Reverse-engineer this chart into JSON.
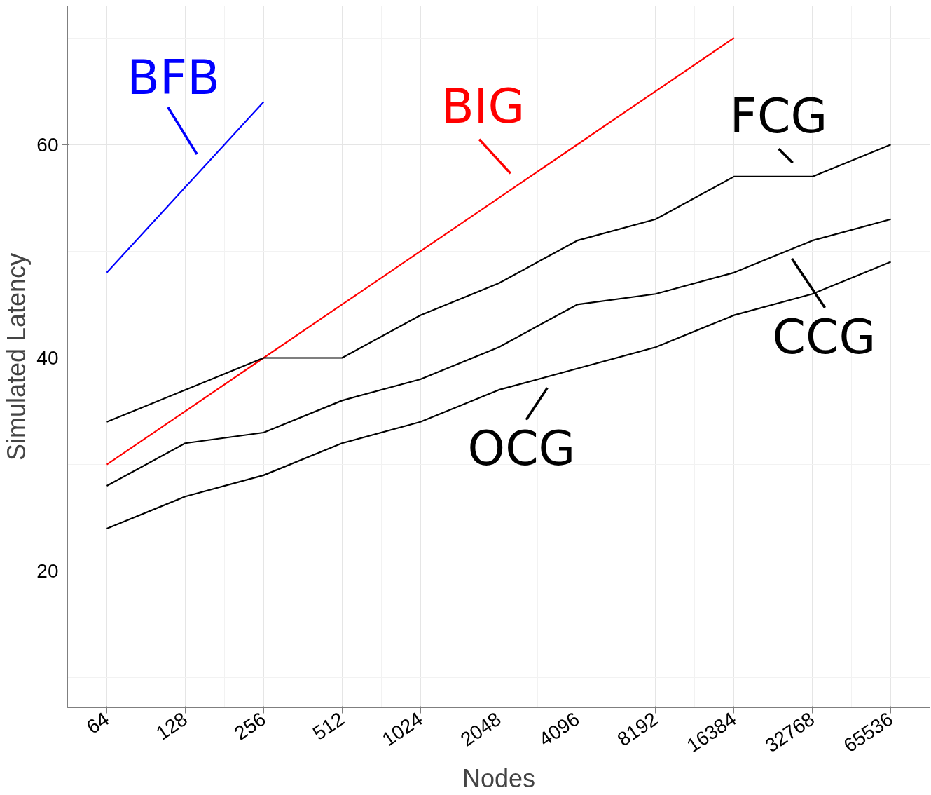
{
  "chart_data": {
    "type": "line",
    "xlabel": "Nodes",
    "ylabel": "Simulated Latency",
    "categories": [
      "64",
      "128",
      "256",
      "512",
      "1024",
      "2048",
      "4096",
      "8192",
      "16384",
      "32768",
      "65536"
    ],
    "ylim": [
      7.2,
      73
    ],
    "yticks": [
      20,
      40,
      60
    ],
    "grid": true,
    "legend": "right",
    "series": [
      {
        "name": "BFB",
        "color": "#0000ff",
        "values": [
          48,
          56,
          64,
          null,
          null,
          null,
          null,
          null,
          null,
          null,
          null
        ]
      },
      {
        "name": "BIG",
        "color": "#ff0000",
        "values": [
          30,
          35,
          40,
          45,
          50,
          55,
          60,
          65,
          70,
          null,
          null
        ]
      },
      {
        "name": "FCG",
        "color": "#000000",
        "values": [
          34,
          37,
          40,
          40,
          44,
          47,
          51,
          53,
          57,
          57,
          60
        ]
      },
      {
        "name": "CCG",
        "color": "#000000",
        "values": [
          28,
          32,
          33,
          36,
          38,
          41,
          45,
          46,
          48,
          51,
          53
        ]
      },
      {
        "name": "OCG",
        "color": "#000000",
        "values": [
          24,
          27,
          29,
          32,
          34,
          37,
          39,
          41,
          44,
          46,
          49
        ]
      }
    ]
  }
}
